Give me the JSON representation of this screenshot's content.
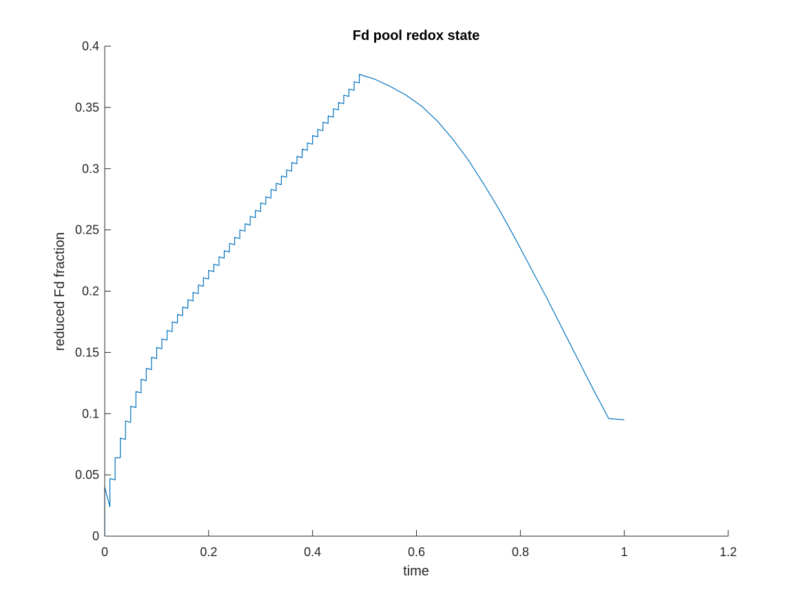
{
  "chart_data": {
    "type": "line",
    "title": "Fd pool redox state",
    "xlabel": "time",
    "ylabel": "reduced Fd fraction",
    "xlim": [
      0,
      1.2
    ],
    "ylim": [
      0,
      0.4
    ],
    "xticks": [
      0,
      0.2,
      0.4,
      0.6,
      0.8,
      1,
      1.2
    ],
    "xtick_labels": [
      "0",
      "0.2",
      "0.4",
      "0.6",
      "0.8",
      "1",
      "1.2"
    ],
    "yticks": [
      0,
      0.05,
      0.1,
      0.15,
      0.2,
      0.25,
      0.3,
      0.35,
      0.4
    ],
    "ytick_labels": [
      "0",
      "0.05",
      "0.1",
      "0.15",
      "0.2",
      "0.25",
      "0.3",
      "0.35",
      "0.4"
    ],
    "grid": false,
    "legend": "none",
    "series": [
      {
        "color": "#0072BD",
        "x": [
          0.0,
          0.0,
          0.01,
          0.01,
          0.02,
          0.02,
          0.03,
          0.03,
          0.04,
          0.04,
          0.05,
          0.05,
          0.06,
          0.06,
          0.07,
          0.07,
          0.08,
          0.08,
          0.09,
          0.09,
          0.1,
          0.1,
          0.11,
          0.11,
          0.12,
          0.12,
          0.13,
          0.13,
          0.14,
          0.14,
          0.15,
          0.15,
          0.16,
          0.16,
          0.17,
          0.17,
          0.18,
          0.18,
          0.19,
          0.19,
          0.2,
          0.2,
          0.21,
          0.21,
          0.22,
          0.22,
          0.23,
          0.23,
          0.24,
          0.24,
          0.25,
          0.25,
          0.26,
          0.26,
          0.27,
          0.27,
          0.28,
          0.28,
          0.29,
          0.29,
          0.3,
          0.3,
          0.31,
          0.31,
          0.32,
          0.32,
          0.33,
          0.33,
          0.34,
          0.34,
          0.35,
          0.35,
          0.36,
          0.36,
          0.37,
          0.37,
          0.38,
          0.38,
          0.39,
          0.39,
          0.4,
          0.4,
          0.41,
          0.41,
          0.42,
          0.42,
          0.43,
          0.43,
          0.44,
          0.44,
          0.45,
          0.45,
          0.46,
          0.46,
          0.47,
          0.47,
          0.48,
          0.48,
          0.49,
          0.49,
          0.52,
          0.55,
          0.58,
          0.61,
          0.64,
          0.67,
          0.7,
          0.73,
          0.76,
          0.79,
          0.82,
          0.85,
          0.88,
          0.91,
          0.94,
          0.97,
          1.0
        ],
        "y": [
          0.0,
          0.04,
          0.024,
          0.047,
          0.046,
          0.064,
          0.064,
          0.08,
          0.079,
          0.094,
          0.093,
          0.106,
          0.105,
          0.118,
          0.117,
          0.128,
          0.127,
          0.137,
          0.136,
          0.146,
          0.145,
          0.154,
          0.153,
          0.161,
          0.16,
          0.168,
          0.167,
          0.175,
          0.174,
          0.181,
          0.18,
          0.187,
          0.186,
          0.193,
          0.192,
          0.199,
          0.198,
          0.205,
          0.204,
          0.211,
          0.21,
          0.217,
          0.216,
          0.222,
          0.221,
          0.228,
          0.227,
          0.233,
          0.232,
          0.239,
          0.238,
          0.244,
          0.243,
          0.25,
          0.249,
          0.255,
          0.254,
          0.261,
          0.26,
          0.266,
          0.265,
          0.272,
          0.271,
          0.277,
          0.276,
          0.283,
          0.282,
          0.288,
          0.287,
          0.294,
          0.293,
          0.299,
          0.298,
          0.305,
          0.304,
          0.31,
          0.309,
          0.316,
          0.315,
          0.321,
          0.32,
          0.327,
          0.326,
          0.332,
          0.331,
          0.338,
          0.337,
          0.343,
          0.342,
          0.349,
          0.348,
          0.354,
          0.353,
          0.36,
          0.359,
          0.365,
          0.364,
          0.371,
          0.37,
          0.377,
          0.373,
          0.367,
          0.36,
          0.351,
          0.339,
          0.324,
          0.307,
          0.287,
          0.266,
          0.243,
          0.219,
          0.195,
          0.17,
          0.145,
          0.12,
          0.096,
          0.095
        ]
      }
    ]
  }
}
